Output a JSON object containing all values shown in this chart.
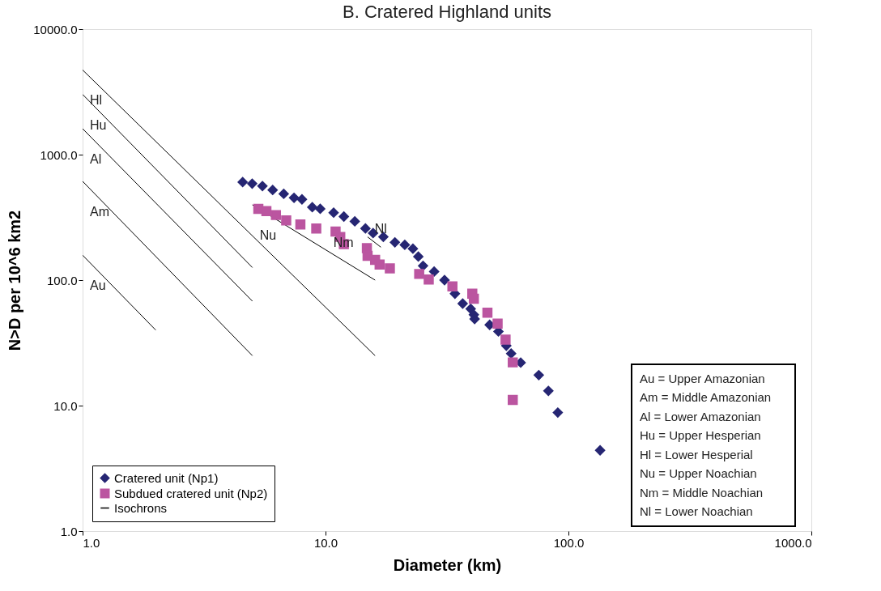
{
  "chart_data": {
    "type": "scatter",
    "title": "B. Cratered Highland units",
    "xlabel": "Diameter (km)",
    "ylabel": "N>D per 10^6 km2",
    "log": "xy",
    "grid": false,
    "legend": "bottom left",
    "xlim": [
      1,
      1000
    ],
    "xticks": [
      {
        "value": 1,
        "label": "1.0"
      },
      {
        "value": 10,
        "label": "10.0"
      },
      {
        "value": 100,
        "label": "100.0"
      },
      {
        "value": 1000,
        "label": "1000.0"
      }
    ],
    "ylim": [
      1,
      10000
    ],
    "yticks": [
      {
        "value": 1,
        "label": "1.0"
      },
      {
        "value": 10,
        "label": "10.0"
      },
      {
        "value": 100,
        "label": "100.0"
      },
      {
        "value": 1000,
        "label": "1000.0"
      },
      {
        "value": 10000,
        "label": "10000.0"
      }
    ],
    "series": [
      {
        "name": "Cratered unit (Np1)",
        "marker": "diamond",
        "color": "#262673",
        "x": [
          4.56,
          4.99,
          5.5,
          6.06,
          6.73,
          7.42,
          8.0,
          8.82,
          9.51,
          10.8,
          11.9,
          13.2,
          14.6,
          15.7,
          17.3,
          19.3,
          21.2,
          22.9,
          24.1,
          25.2,
          28.0,
          30.9,
          34.1,
          36.7,
          39.6,
          40.8,
          41.1,
          47.4,
          51.5,
          55.5,
          58.1,
          63.6,
          75.5,
          82.7,
          90.4,
          135
        ],
        "values": [
          604,
          587,
          562,
          523,
          487,
          453,
          440,
          381,
          370,
          345,
          321,
          294,
          258,
          237,
          221,
          200,
          191,
          178,
          154,
          130,
          117,
          100,
          78,
          65,
          59,
          53,
          49,
          44,
          39,
          30,
          26,
          22,
          17.5,
          13.1,
          8.8,
          4.4
        ]
      },
      {
        "name": "Subdued cratered unit (Np2)",
        "marker": "square",
        "color": "#bb55a0",
        "x": [
          5.29,
          5.71,
          6.25,
          6.89,
          7.88,
          9.16,
          11.0,
          11.5,
          11.9,
          14.8,
          14.9,
          16.0,
          16.7,
          18.4,
          24.3,
          26.6,
          33.3,
          40.2,
          40.8,
          46.4,
          51.1,
          55.1,
          59.0,
          59.0
        ],
        "values": [
          370,
          355,
          330,
          299,
          278,
          258,
          244,
          221,
          194,
          180,
          156,
          145,
          133,
          124,
          112,
          101,
          89,
          78,
          71,
          55,
          45,
          33.5,
          22.1,
          11.1
        ]
      },
      {
        "name": "Isochrons",
        "type": "line",
        "marker": "none",
        "color": "#000000",
        "x": [
          1,
          16
        ],
        "values": [
          4730,
          25
        ]
      },
      {
        "type": "line",
        "marker": "none",
        "color": "#000000",
        "x": [
          1,
          5
        ],
        "values": [
          3020,
          126
        ]
      },
      {
        "type": "line",
        "marker": "none",
        "color": "#000000",
        "x": [
          1,
          5
        ],
        "values": [
          1610,
          68
        ]
      },
      {
        "type": "line",
        "marker": "none",
        "color": "#000000",
        "x": [
          1,
          5
        ],
        "values": [
          613,
          25
        ]
      },
      {
        "type": "line",
        "marker": "none",
        "color": "#000000",
        "x": [
          1,
          2
        ],
        "values": [
          158,
          40
        ]
      },
      {
        "type": "line",
        "marker": "none",
        "color": "#000000",
        "x": [
          5,
          16
        ],
        "values": [
          398,
          100
        ]
      },
      {
        "type": "line",
        "marker": "none",
        "color": "#000000",
        "x": [
          14.9,
          16.9
        ],
        "values": [
          221,
          183
        ]
      }
    ],
    "annotations": [
      {
        "text": "Hl",
        "x": 1,
        "y": 4730
      },
      {
        "text": "Hu",
        "x": 1,
        "y": 3020
      },
      {
        "text": "Al",
        "x": 1,
        "y": 1610
      },
      {
        "text": "Am",
        "x": 1,
        "y": 613
      },
      {
        "text": "Au",
        "x": 1,
        "y": 158
      },
      {
        "text": "Nu",
        "x": 5,
        "y": 398
      },
      {
        "text": "Nm",
        "x": 11.85,
        "y": 142
      },
      {
        "text": "Nl",
        "x": 16.9,
        "y": 183
      },
      "Au = Upper Amazonian",
      "Am = Middle Amazonian",
      "Al = Lower Amazonian",
      "Hu = Upper Hesperian",
      "Hl = Lower Hesperial",
      "Nu = Upper Noachian",
      "Nm = Middle Noachian",
      "Nl = Lower Noachian"
    ]
  }
}
